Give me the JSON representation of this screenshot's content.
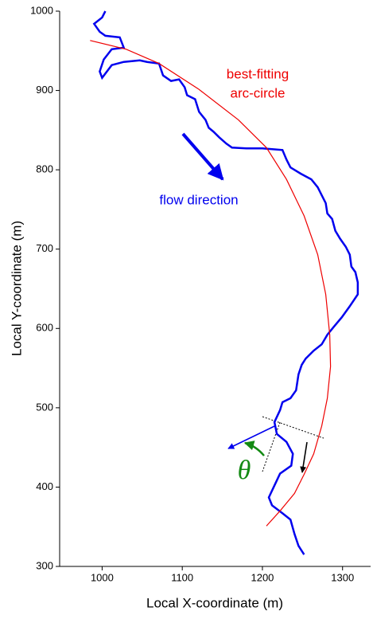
{
  "chart_data": {
    "type": "line",
    "xlabel": "Local X-coordinate (m)",
    "ylabel": "Local Y-coordinate (m)",
    "xlim": [
      947,
      1335
    ],
    "ylim": [
      300,
      1000
    ],
    "xticks": [
      1000,
      1100,
      1200,
      1300
    ],
    "yticks": [
      300,
      400,
      500,
      600,
      700,
      800,
      900,
      1000
    ],
    "series": [
      {
        "color": "#0000ee",
        "x": [
          1004,
          1000,
          990,
          997,
          1004,
          1022,
          1027,
          1012,
          1002,
          997,
          1000,
          1012,
          1027,
          1047,
          1056,
          1071,
          1076,
          1086,
          1096,
          1103,
          1106,
          1116,
          1121,
          1129,
          1133,
          1139,
          1146,
          1155,
          1162,
          1180,
          1200,
          1225,
          1230,
          1235,
          1248,
          1261,
          1269,
          1274,
          1279,
          1281,
          1287,
          1291,
          1297,
          1304,
          1309,
          1311,
          1316,
          1319,
          1319,
          1309,
          1299,
          1289,
          1281,
          1274,
          1264,
          1254,
          1249,
          1245,
          1242,
          1235,
          1225,
          1222,
          1215,
          1218,
          1230,
          1238,
          1236,
          1222,
          1215,
          1208,
          1212,
          1225,
          1235,
          1240,
          1245,
          1252
        ],
        "values": [
          1000,
          992,
          984,
          974,
          969,
          967,
          954,
          952,
          939,
          924,
          916,
          932,
          936,
          938,
          936,
          934,
          919,
          912,
          914,
          904,
          894,
          889,
          873,
          863,
          853,
          848,
          841,
          833,
          828,
          827,
          827,
          825,
          813,
          803,
          795,
          788,
          778,
          768,
          758,
          745,
          738,
          723,
          713,
          703,
          693,
          678,
          671,
          658,
          643,
          628,
          614,
          602,
          592,
          580,
          572,
          562,
          554,
          542,
          522,
          512,
          507,
          497,
          482,
          467,
          457,
          442,
          427,
          417,
          402,
          387,
          377,
          367,
          359,
          341,
          326,
          315
        ]
      },
      {
        "color": "#ee0000",
        "x": [
          985,
          1030,
          1071,
          1120,
          1170,
          1205,
          1230,
          1252,
          1269,
          1279,
          1284,
          1285,
          1281,
          1274,
          1264,
          1252,
          1240,
          1222,
          1205
        ],
        "values": [
          963,
          952,
          934,
          902,
          863,
          828,
          788,
          742,
          693,
          643,
          592,
          552,
          512,
          477,
          442,
          416,
          392,
          370,
          351
        ]
      }
    ],
    "annotations": [
      {
        "text": "best-fitting",
        "color": "#ee0000"
      },
      {
        "text": "arc-circle",
        "color": "#ee0000"
      },
      {
        "text": "flow direction",
        "color": "#0000ee"
      },
      {
        "text": "θ",
        "color": "#138a13"
      }
    ]
  }
}
